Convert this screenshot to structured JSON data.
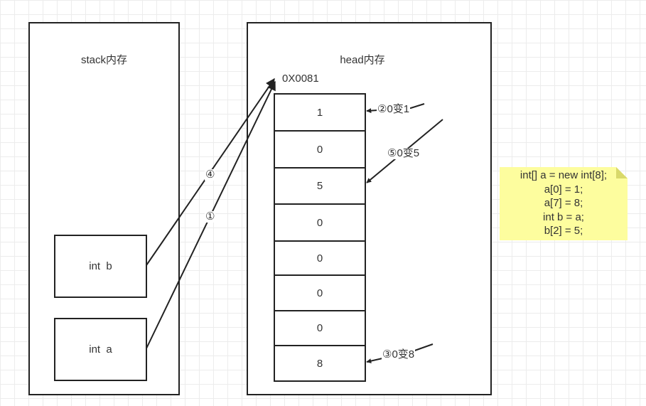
{
  "stack": {
    "title": "stack内存",
    "vars": [
      "int  b",
      "int  a"
    ]
  },
  "heap": {
    "title": "head内存",
    "address": "0X0081",
    "cells": [
      "1",
      "0",
      "5",
      "0",
      "0",
      "0",
      "0",
      "8"
    ]
  },
  "steps": {
    "step1": "①",
    "step2": "②0变1",
    "step3": "③0变8",
    "step4": "④",
    "step5": "⑤0变5"
  },
  "note": {
    "lines": [
      "int[] a = new int[8];",
      "a[0] = 1;",
      "a[7] = 8;",
      "int b = a;",
      "b[2] = 5;"
    ]
  },
  "colors": {
    "stroke": "#222222",
    "note_bg": "#fdfd9e",
    "grid": "#ececec"
  }
}
